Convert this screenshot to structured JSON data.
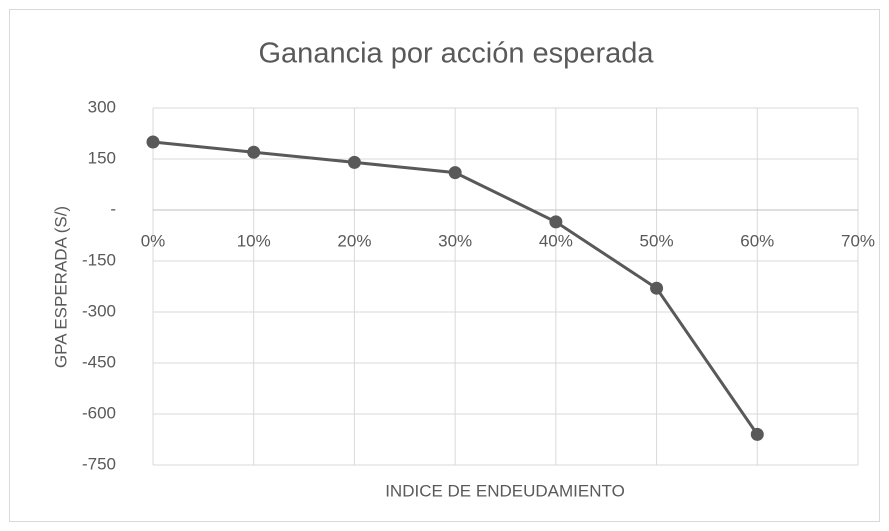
{
  "chart_data": {
    "type": "line",
    "title": "Ganancia por acción esperada",
    "x_label": "INDICE DE ENDEUDAMIENTO",
    "y_label": "GPA  ESPERADA (S/)",
    "x": [
      0,
      10,
      20,
      30,
      40,
      50,
      60
    ],
    "values": [
      200,
      170,
      140,
      110,
      -35,
      -230,
      -660
    ],
    "color": "#595959",
    "xlim": [
      0,
      70
    ],
    "xticks": [
      {
        "value": 0,
        "label": "0%"
      },
      {
        "value": 10,
        "label": "10%"
      },
      {
        "value": 20,
        "label": "20%"
      },
      {
        "value": 30,
        "label": "30%"
      },
      {
        "value": 40,
        "label": "40%"
      },
      {
        "value": 50,
        "label": "50%"
      },
      {
        "value": 60,
        "label": "60%"
      },
      {
        "value": 70,
        "label": "70%"
      }
    ],
    "ylim": [
      -750,
      300
    ],
    "yticks": [
      300,
      150,
      {
        "value": 0,
        "label": "-"
      },
      -150,
      -300,
      -450,
      -600,
      -750
    ],
    "grid": true
  }
}
